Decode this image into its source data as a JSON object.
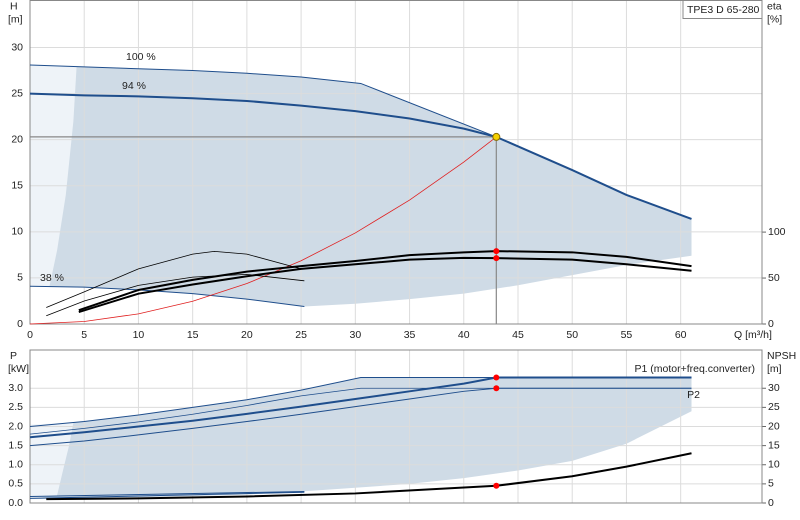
{
  "chart_data": [
    {
      "type": "line",
      "annotation": "TPE3 D 65-280",
      "ylabel": "H",
      "y_unit": "[m]",
      "y2label": "eta",
      "y2_unit": "[%]",
      "xlabel": "Q [m³/h]",
      "xlim": [
        0,
        67.5
      ],
      "xticks": [
        0,
        5,
        10,
        15,
        20,
        25,
        30,
        35,
        40,
        45,
        50,
        55,
        60
      ],
      "show_xtick_labels": true,
      "ylim": [
        0,
        35.1
      ],
      "yticks": [
        0,
        5,
        10,
        15,
        20,
        25,
        30
      ],
      "y2lim": [
        0,
        352
      ],
      "y2ticks": [
        0,
        50,
        100
      ],
      "grid": true,
      "region": {
        "color": "#cfdbe6",
        "x_upper": [
          0,
          5,
          10,
          15,
          20,
          25,
          30.5,
          43,
          50,
          55,
          61
        ],
        "upper": [
          28.1,
          27.9,
          27.7,
          27.5,
          27.2,
          26.8,
          26.1,
          20.3,
          16.7,
          14.0,
          11.4
        ],
        "x_lower": [
          61,
          55,
          50,
          45,
          40,
          35,
          30,
          25.3,
          20,
          15,
          10,
          5,
          0
        ],
        "lower": [
          7.4,
          6.4,
          5.3,
          4.2,
          3.3,
          2.7,
          2.2,
          1.9,
          2.7,
          3.3,
          3.7,
          4.0,
          4.1
        ]
      },
      "light_region": {
        "color": "#eef3f8",
        "x": [
          0,
          4.3,
          4,
          3.3,
          2.5,
          1.8,
          0
        ],
        "values": [
          28.1,
          28,
          22,
          14,
          8,
          4.1,
          4.1
        ]
      },
      "series": [
        {
          "name": "100 %",
          "color": "#1f4e8c",
          "width": 1,
          "x": [
            0,
            5,
            10,
            15,
            20,
            25,
            30.5,
            43
          ],
          "values": [
            28.1,
            27.9,
            27.7,
            27.5,
            27.2,
            26.8,
            26.1,
            20.3
          ]
        },
        {
          "name": "94 %",
          "color": "#1f4e8c",
          "width": 2,
          "x": [
            0,
            5,
            10,
            15,
            20,
            25,
            30,
            35,
            40,
            43,
            50,
            55,
            61
          ],
          "values": [
            25.0,
            24.8,
            24.7,
            24.5,
            24.2,
            23.7,
            23.1,
            22.3,
            21.2,
            20.3,
            16.7,
            14.0,
            11.4
          ]
        },
        {
          "name": "38 %",
          "color": "#1f4e8c",
          "width": 1,
          "x": [
            0,
            5,
            10,
            15,
            20,
            25.3
          ],
          "values": [
            4.1,
            4.0,
            3.7,
            3.3,
            2.7,
            1.9
          ]
        },
        {
          "color": "#e02020",
          "width": 0.8,
          "x": [
            0,
            5,
            10,
            15,
            20,
            25,
            30,
            35,
            40,
            43
          ],
          "values": [
            0,
            0.27,
            1.1,
            2.47,
            4.39,
            6.86,
            9.88,
            13.45,
            17.57,
            20.3
          ]
        },
        {
          "color": "#000000",
          "width": 2,
          "axis": "y2",
          "x": [
            4.5,
            10,
            15,
            20,
            25,
            30,
            35,
            40,
            43,
            50,
            55,
            61
          ],
          "values": [
            15,
            37,
            48,
            57,
            63,
            68.5,
            75,
            78,
            79.3,
            78,
            73,
            63
          ]
        },
        {
          "color": "#000000",
          "width": 2,
          "axis": "y2",
          "x": [
            4.5,
            10,
            15,
            20,
            25,
            30,
            35,
            40,
            43,
            50,
            55,
            61
          ],
          "values": [
            13,
            33,
            43,
            52,
            60,
            65,
            70,
            72,
            71.7,
            70,
            65,
            58
          ]
        },
        {
          "color": "#000000",
          "width": 0.8,
          "axis": "y2",
          "x": [
            1.5,
            5,
            10,
            15,
            17,
            20,
            25
          ],
          "values": [
            18,
            35,
            60,
            76,
            79,
            76,
            60
          ]
        },
        {
          "color": "#000000",
          "width": 0.8,
          "axis": "y2",
          "x": [
            1.5,
            5,
            10,
            15,
            20,
            25.3
          ],
          "values": [
            9,
            25,
            42,
            51,
            54,
            47
          ]
        }
      ],
      "operating_point": {
        "x": 43,
        "y": 20.3,
        "color": "#f5d000"
      },
      "markers": [
        {
          "x": 43,
          "value": 79.3,
          "axis": "y2",
          "color": "#ff0000"
        },
        {
          "x": 43,
          "value": 71.7,
          "axis": "y2",
          "color": "#ff0000"
        }
      ]
    },
    {
      "type": "line",
      "ylabel": "P",
      "y_unit": "[kW]",
      "y2label": "NPSH",
      "y2_unit": "[m]",
      "xlim": [
        0,
        67.5
      ],
      "xticks": [
        0,
        5,
        10,
        15,
        20,
        25,
        30,
        35,
        40,
        45,
        50,
        55,
        60
      ],
      "show_xtick_labels": false,
      "ylim": [
        0,
        4.0
      ],
      "yticks": [
        {
          "value": 0,
          "label": "0.0"
        },
        0.5,
        {
          "value": 1,
          "label": "1.0"
        },
        1.5,
        {
          "value": 2,
          "label": "2.0"
        },
        2.5,
        {
          "value": 3,
          "label": "3.0"
        }
      ],
      "y2lim": [
        0,
        40
      ],
      "y2ticks": [
        0,
        5,
        10,
        15,
        20,
        25,
        30
      ],
      "grid": true,
      "region": {
        "color": "#cfdbe6",
        "x_upper": [
          0,
          5,
          10,
          15,
          20,
          25,
          30.5,
          61
        ],
        "upper": [
          2.0,
          2.13,
          2.3,
          2.5,
          2.7,
          2.95,
          3.28,
          3.28
        ],
        "x_lower": [
          61,
          55,
          50,
          45,
          40,
          35,
          30,
          25,
          20,
          15,
          10,
          5,
          0
        ],
        "lower": [
          2.4,
          1.55,
          1.1,
          0.85,
          0.65,
          0.5,
          0.4,
          0.3,
          0.22,
          0.18,
          0.15,
          0.13,
          0.1
        ]
      },
      "light_region": {
        "color": "#eef3f8",
        "x": [
          0,
          4,
          3.6,
          3,
          2.5,
          0
        ],
        "values": [
          2.05,
          2.1,
          1.5,
          0.8,
          0.2,
          0.1
        ]
      },
      "series": [
        {
          "name": "P1 (motor+freq.converter)",
          "color": "#1f4e8c",
          "width": 2,
          "x": [
            0,
            5,
            10,
            15,
            20,
            25,
            30,
            35,
            40,
            43,
            61
          ],
          "values": [
            1.72,
            1.85,
            2.0,
            2.15,
            2.33,
            2.52,
            2.72,
            2.92,
            3.12,
            3.28,
            3.28
          ]
        },
        {
          "name": "P2",
          "color": "#1f4e8c",
          "width": 1,
          "x": [
            0,
            5,
            10,
            15,
            20,
            25,
            30,
            35,
            40,
            43,
            61
          ],
          "values": [
            1.5,
            1.62,
            1.78,
            1.95,
            2.13,
            2.32,
            2.52,
            2.72,
            2.92,
            3.0,
            3.0
          ]
        },
        {
          "color": "#1f4e8c",
          "width": 1,
          "x": [
            0,
            5,
            10,
            15,
            20,
            25,
            30.5,
            61
          ],
          "values": [
            2.0,
            2.13,
            2.3,
            2.5,
            2.7,
            2.95,
            3.28,
            3.28
          ]
        },
        {
          "color": "#1f4e8c",
          "width": 0.8,
          "x": [
            0,
            5,
            10,
            15,
            20,
            25,
            30.5,
            61
          ],
          "values": [
            1.8,
            1.95,
            2.12,
            2.32,
            2.55,
            2.8,
            3.0,
            3.0
          ]
        },
        {
          "color": "#1f4e8c",
          "width": 1,
          "x": [
            0,
            25.3
          ],
          "values": [
            0.12,
            0.28
          ]
        },
        {
          "color": "#1f4e8c",
          "width": 1,
          "x": [
            0,
            25.3
          ],
          "values": [
            0.17,
            0.3
          ]
        },
        {
          "color": "#000000",
          "width": 2,
          "axis": "y2",
          "x": [
            1.5,
            10,
            20,
            30,
            43,
            50,
            55,
            61
          ],
          "values": [
            1.0,
            1.2,
            1.7,
            2.5,
            4.5,
            7,
            9.5,
            13
          ]
        }
      ],
      "markers": [
        {
          "x": 43,
          "value": 3.28,
          "color": "#ff0000"
        },
        {
          "x": 43,
          "value": 3.0,
          "color": "#ff0000"
        },
        {
          "x": 43,
          "value": 4.5,
          "axis": "y2",
          "color": "#ff0000"
        }
      ]
    }
  ]
}
